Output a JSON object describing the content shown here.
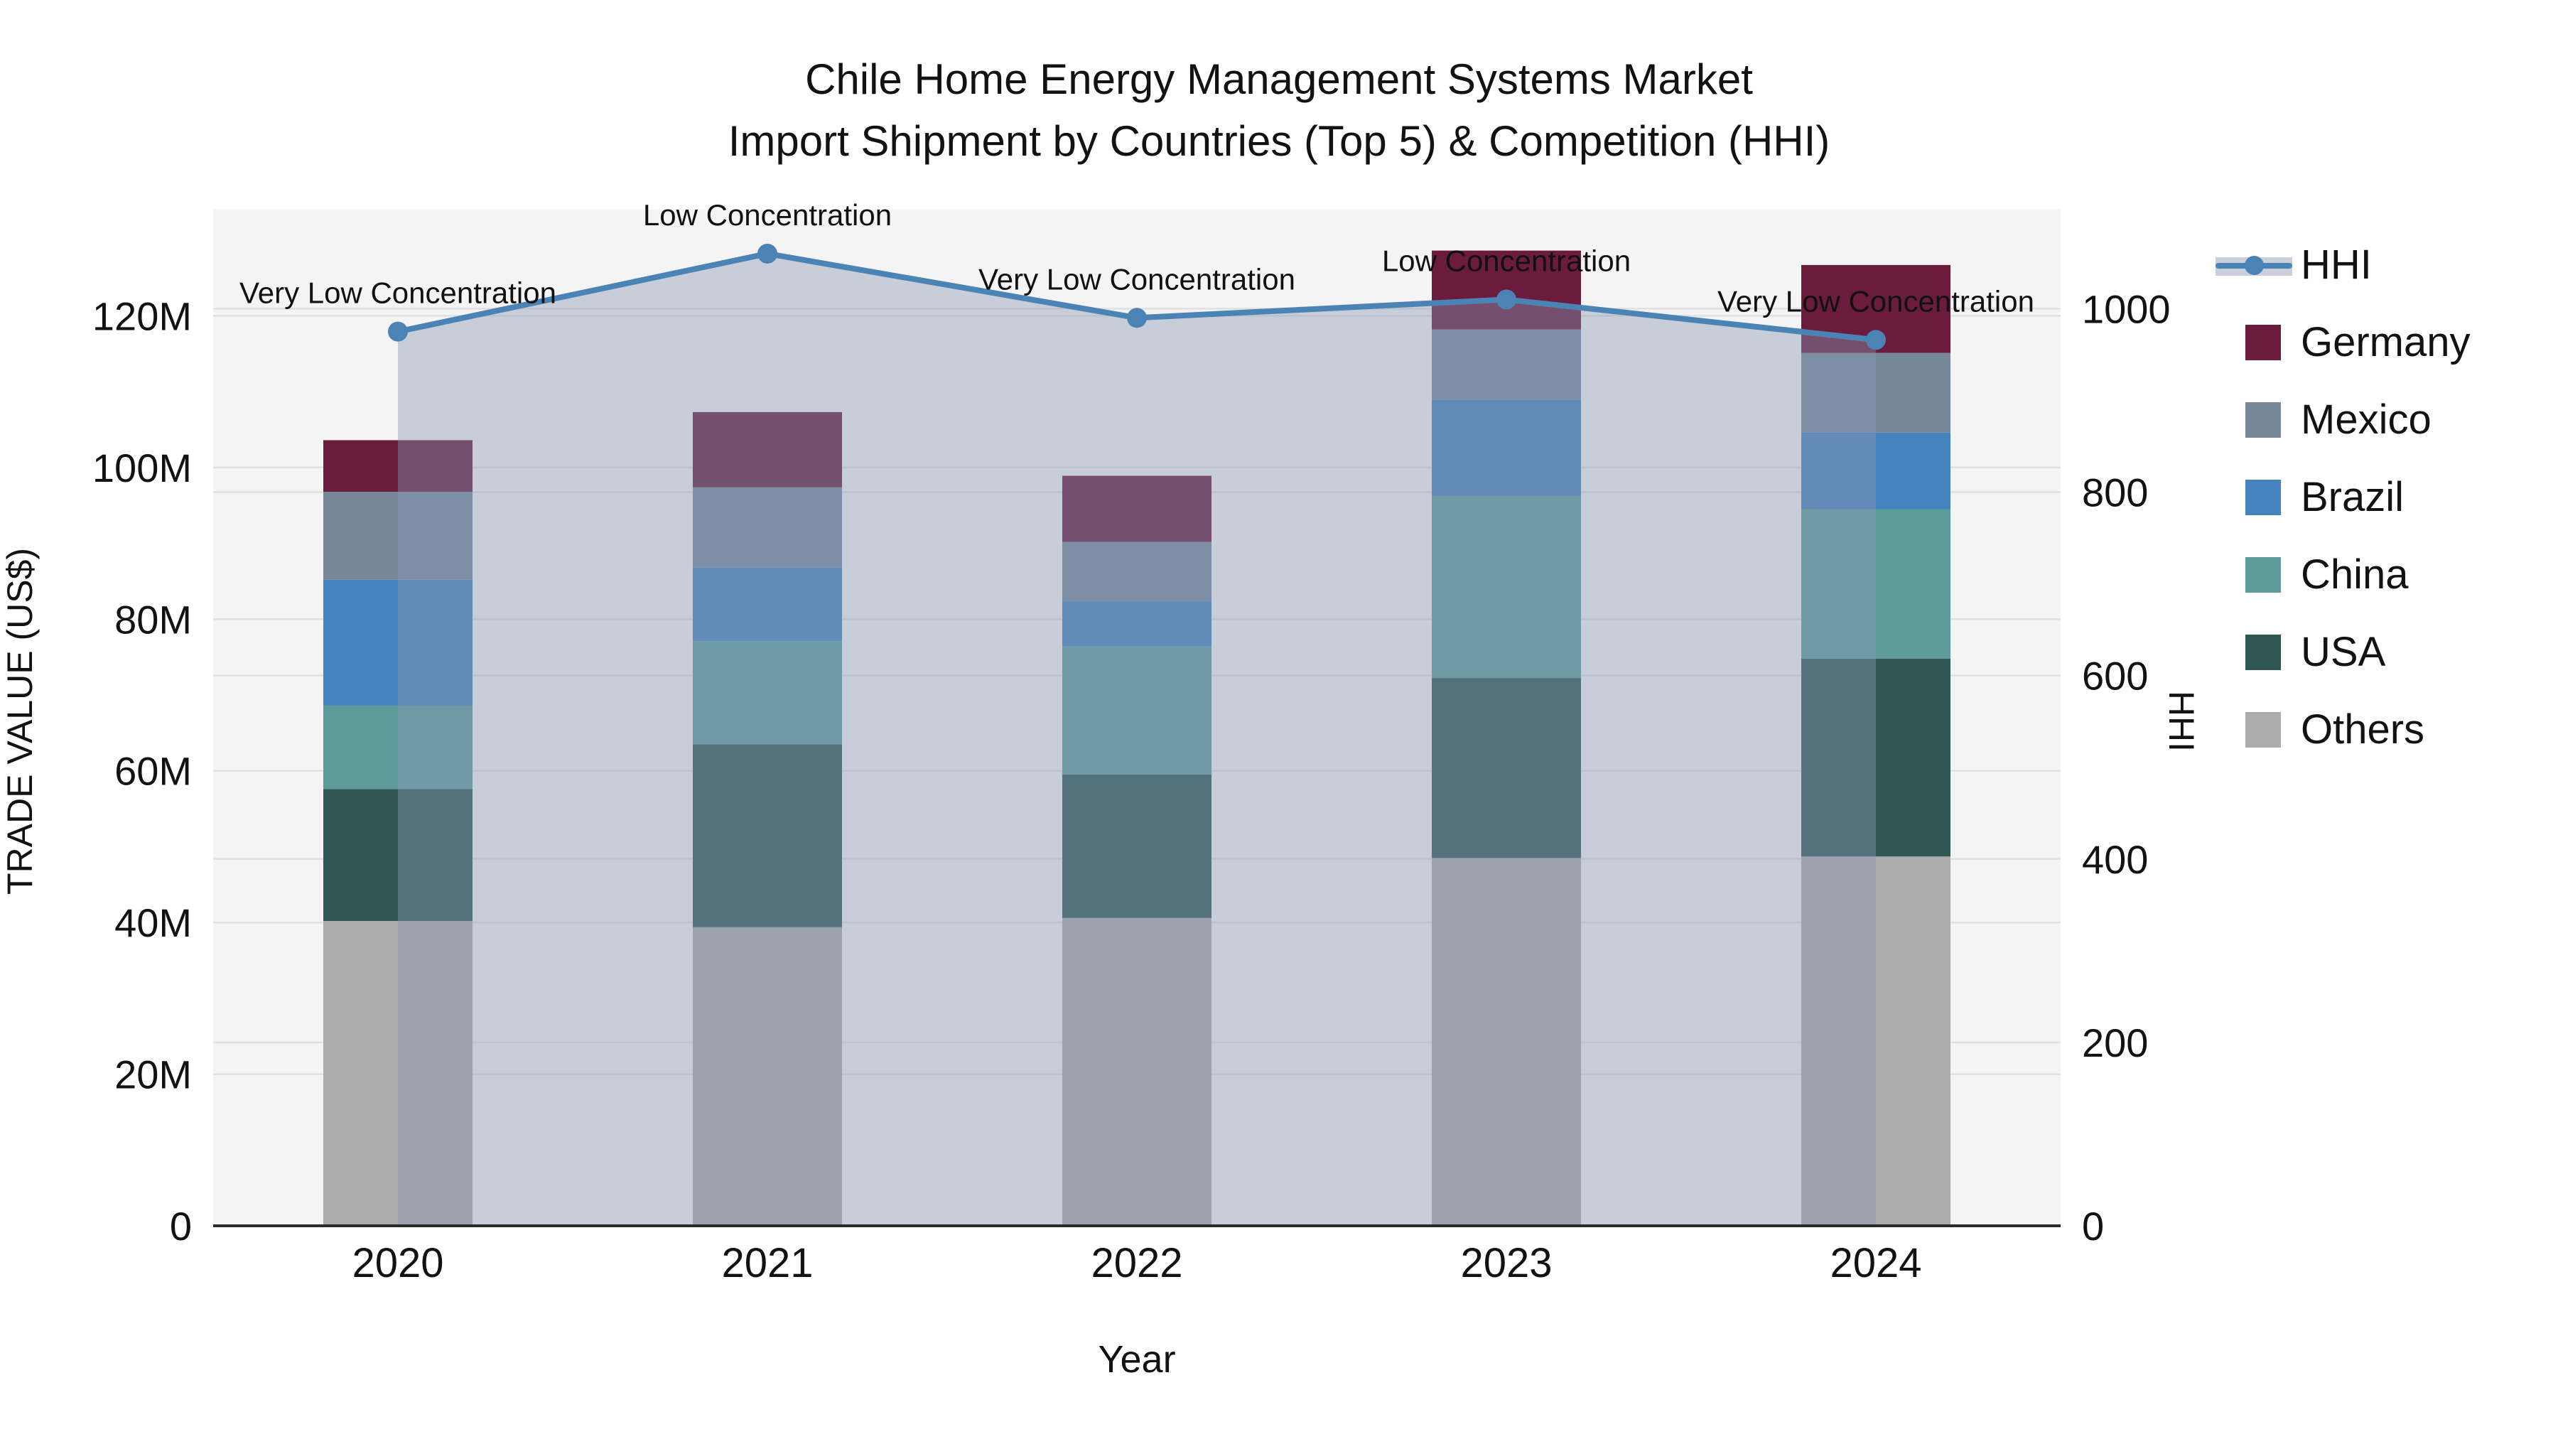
{
  "title": {
    "line1": "Chile Home Energy Management Systems Market",
    "line2": "Import Shipment by Countries (Top 5) & Competition (HHI)"
  },
  "axes": {
    "x_label": "Year",
    "y_left_label": "TRADE VALUE (US$)",
    "y_right_label": "HHI",
    "y_left_ticks": [
      "0",
      "20M",
      "40M",
      "60M",
      "80M",
      "100M",
      "120M"
    ],
    "y_left_tick_values": [
      0,
      20,
      40,
      60,
      80,
      100,
      120
    ],
    "y_right_ticks": [
      "0",
      "200",
      "400",
      "600",
      "800",
      "1000"
    ],
    "y_right_tick_values": [
      0,
      200,
      400,
      600,
      800,
      1000
    ]
  },
  "legend": {
    "items": [
      {
        "label": "HHI",
        "type": "line",
        "color": "#4C83B5"
      },
      {
        "label": "Germany",
        "type": "square",
        "color": "#6B1C3D"
      },
      {
        "label": "Mexico",
        "type": "square",
        "color": "#78889B"
      },
      {
        "label": "Brazil",
        "type": "square",
        "color": "#4583BE"
      },
      {
        "label": "China",
        "type": "square",
        "color": "#5D9B9B"
      },
      {
        "label": "USA",
        "type": "square",
        "color": "#2E5753"
      },
      {
        "label": "Others",
        "type": "square",
        "color": "#ABABAB"
      }
    ]
  },
  "chart_data": {
    "type": "bar",
    "stacked": true,
    "title": "Chile Home Energy Management Systems Market — Import Shipment by Countries (Top 5) & Competition (HHI)",
    "categories": [
      "2020",
      "2021",
      "2022",
      "2023",
      "2024"
    ],
    "xlabel": "Year",
    "ylabel_left": "TRADE VALUE (US$)",
    "ylabel_right": "HHI",
    "unit_left": "million US$",
    "y_left_range": [
      0,
      134
    ],
    "y_right_range": [
      0,
      1108
    ],
    "grid": true,
    "legend_position": "right",
    "series": [
      {
        "name": "Others",
        "color": "#ABABAB",
        "values": [
          40.2,
          39.4,
          40.6,
          48.5,
          48.7
        ]
      },
      {
        "name": "USA",
        "color": "#2E5753",
        "values": [
          17.4,
          24.1,
          18.9,
          23.7,
          26.1
        ]
      },
      {
        "name": "China",
        "color": "#5D9B9B",
        "values": [
          11.0,
          13.6,
          16.9,
          24.0,
          19.7
        ]
      },
      {
        "name": "Brazil",
        "color": "#4583BE",
        "values": [
          16.6,
          9.7,
          6.0,
          12.7,
          10.1
        ]
      },
      {
        "name": "Mexico",
        "color": "#78889B",
        "values": [
          11.6,
          10.6,
          7.8,
          9.3,
          10.5
        ]
      },
      {
        "name": "Germany",
        "color": "#6B1C3D",
        "values": [
          6.8,
          9.9,
          8.7,
          10.4,
          11.6
        ]
      }
    ],
    "bar_totals": [
      103.6,
      107.3,
      98.9,
      128.6,
      126.7
    ],
    "line_series": {
      "name": "HHI",
      "axis": "right",
      "color": "#4C83B5",
      "area_fill": "rgba(135,150,178,0.42)",
      "values": [
        975,
        1060,
        990,
        1010,
        966
      ]
    },
    "annotations": [
      {
        "x": "2020",
        "text": "Very Low Concentration"
      },
      {
        "x": "2021",
        "text": "Low Concentration"
      },
      {
        "x": "2022",
        "text": "Very Low Concentration"
      },
      {
        "x": "2023",
        "text": "Low Concentration"
      },
      {
        "x": "2024",
        "text": "Very Low Concentration"
      }
    ],
    "colors": {
      "plot_background": "#F4F4F4",
      "page_background": "#FFFFFF",
      "gridline": "#E0E0E0",
      "axis_line": "#2A2A2A",
      "tick_text": "#121212",
      "annotation_text": "#111111"
    }
  }
}
